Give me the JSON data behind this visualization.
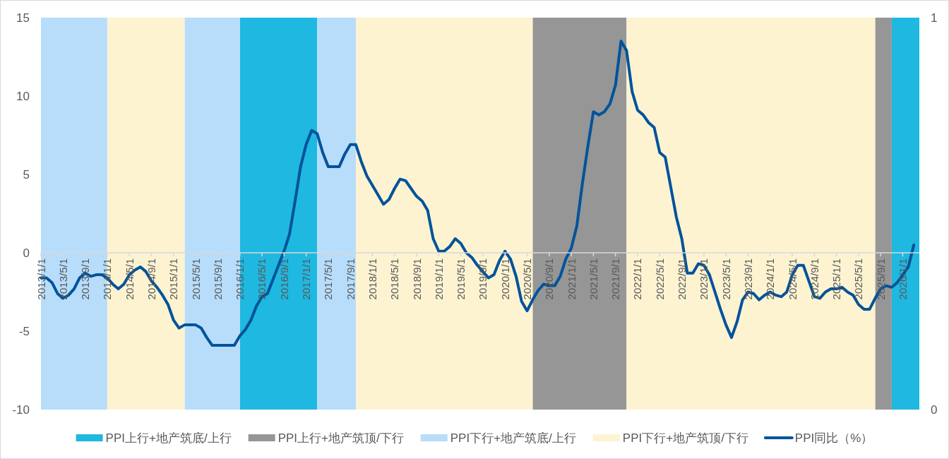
{
  "chart_data": {
    "type": "line",
    "x": [
      "2013-01",
      "2013-02",
      "2013-03",
      "2013-04",
      "2013-05",
      "2013-06",
      "2013-07",
      "2013-08",
      "2013-09",
      "2013-10",
      "2013-11",
      "2013-12",
      "2014-01",
      "2014-02",
      "2014-03",
      "2014-04",
      "2014-05",
      "2014-06",
      "2014-07",
      "2014-08",
      "2014-09",
      "2014-10",
      "2014-11",
      "2014-12",
      "2015-01",
      "2015-02",
      "2015-03",
      "2015-04",
      "2015-05",
      "2015-06",
      "2015-07",
      "2015-08",
      "2015-09",
      "2015-10",
      "2015-11",
      "2015-12",
      "2016-01",
      "2016-02",
      "2016-03",
      "2016-04",
      "2016-05",
      "2016-06",
      "2016-07",
      "2016-08",
      "2016-09",
      "2016-10",
      "2016-11",
      "2016-12",
      "2017-01",
      "2017-02",
      "2017-03",
      "2017-04",
      "2017-05",
      "2017-06",
      "2017-07",
      "2017-08",
      "2017-09",
      "2017-10",
      "2017-11",
      "2017-12",
      "2018-01",
      "2018-02",
      "2018-03",
      "2018-04",
      "2018-05",
      "2018-06",
      "2018-07",
      "2018-08",
      "2018-09",
      "2018-10",
      "2018-11",
      "2018-12",
      "2019-01",
      "2019-02",
      "2019-03",
      "2019-04",
      "2019-05",
      "2019-06",
      "2019-07",
      "2019-08",
      "2019-09",
      "2019-10",
      "2019-11",
      "2019-12",
      "2020-01",
      "2020-02",
      "2020-03",
      "2020-04",
      "2020-05",
      "2020-06",
      "2020-07",
      "2020-08",
      "2020-09",
      "2020-10",
      "2020-11",
      "2020-12",
      "2021-01",
      "2021-02",
      "2021-03",
      "2021-04",
      "2021-05",
      "2021-06",
      "2021-07",
      "2021-08",
      "2021-09",
      "2021-10",
      "2021-11",
      "2021-12",
      "2022-01",
      "2022-02",
      "2022-03",
      "2022-04",
      "2022-05",
      "2022-06",
      "2022-07",
      "2022-08",
      "2022-09",
      "2022-10",
      "2022-11",
      "2022-12",
      "2023-01",
      "2023-02",
      "2023-03",
      "2023-04",
      "2023-05",
      "2023-06",
      "2023-07",
      "2023-08",
      "2023-09",
      "2023-10",
      "2023-11",
      "2023-12",
      "2024-01",
      "2024-02",
      "2024-03",
      "2024-04",
      "2024-05",
      "2024-06",
      "2024-07",
      "2024-08",
      "2024-09",
      "2024-10",
      "2024-11",
      "2024-12",
      "2025-01",
      "2025-02",
      "2025-03",
      "2025-04",
      "2025-05",
      "2025-06",
      "2025-07",
      "2025-08",
      "2025-09",
      "2025-10",
      "2025-11",
      "2025-12",
      "2026-01",
      "2026-02",
      "2026-03"
    ],
    "xlim": [
      "2013-01",
      "2026-04"
    ],
    "xticks": [
      {
        "value": "2013-01",
        "label": "2013/1/1"
      },
      {
        "value": "2013-05",
        "label": "2013/5/1"
      },
      {
        "value": "2013-09",
        "label": "2013/9/1"
      },
      {
        "value": "2014-01",
        "label": "2014/1/1"
      },
      {
        "value": "2014-05",
        "label": "2014/5/1"
      },
      {
        "value": "2014-09",
        "label": "2014/9/1"
      },
      {
        "value": "2015-01",
        "label": "2015/1/1"
      },
      {
        "value": "2015-05",
        "label": "2015/5/1"
      },
      {
        "value": "2015-09",
        "label": "2015/9/1"
      },
      {
        "value": "2016-01",
        "label": "2016/1/1"
      },
      {
        "value": "2016-05",
        "label": "2016/5/1"
      },
      {
        "value": "2016-09",
        "label": "2016/9/1"
      },
      {
        "value": "2017-01",
        "label": "2017/1/1"
      },
      {
        "value": "2017-05",
        "label": "2017/5/1"
      },
      {
        "value": "2017-09",
        "label": "2017/9/1"
      },
      {
        "value": "2018-01",
        "label": "2018/1/1"
      },
      {
        "value": "2018-05",
        "label": "2018/5/1"
      },
      {
        "value": "2018-09",
        "label": "2018/9/1"
      },
      {
        "value": "2019-01",
        "label": "2019/1/1"
      },
      {
        "value": "2019-05",
        "label": "2019/5/1"
      },
      {
        "value": "2019-09",
        "label": "2019/9/1"
      },
      {
        "value": "2020-01",
        "label": "2020/1/1"
      },
      {
        "value": "2020-05",
        "label": "2020/5/1"
      },
      {
        "value": "2020-09",
        "label": "2020/9/1"
      },
      {
        "value": "2021-01",
        "label": "2021/1/1"
      },
      {
        "value": "2021-05",
        "label": "2021/5/1"
      },
      {
        "value": "2021-09",
        "label": "2021/9/1"
      },
      {
        "value": "2022-01",
        "label": "2022/1/1"
      },
      {
        "value": "2022-05",
        "label": "2022/5/1"
      },
      {
        "value": "2022-09",
        "label": "2022/9/1"
      },
      {
        "value": "2023-01",
        "label": "2023/1/1"
      },
      {
        "value": "2023-05",
        "label": "2023/5/1"
      },
      {
        "value": "2023-09",
        "label": "2023/9/1"
      },
      {
        "value": "2024-01",
        "label": "2024/1/1"
      },
      {
        "value": "2024-05",
        "label": "2024/5/1"
      },
      {
        "value": "2024-09",
        "label": "2024/9/1"
      },
      {
        "value": "2025-01",
        "label": "2025/1/1"
      },
      {
        "value": "2025-05",
        "label": "2025/5/1"
      },
      {
        "value": "2025-09",
        "label": "2025/9/1"
      },
      {
        "value": "2026-01",
        "label": "2026/1/1"
      }
    ],
    "ylim": [
      -10,
      15
    ],
    "yticks": [
      -10,
      -5,
      0,
      5,
      10,
      15
    ],
    "y2lim": [
      0,
      1
    ],
    "y2ticks": [
      0,
      1
    ],
    "legend": "bottom",
    "marker": "none",
    "line_style": "solid",
    "bands": [
      {
        "axis": "x",
        "from": "2016-01",
        "to": "2017-03",
        "color": "#1fb8e0",
        "label": "PPI上行+地产筑底/上行"
      },
      {
        "axis": "x",
        "from": "2025-11",
        "to": "2026-04",
        "color": "#1fb8e0"
      },
      {
        "axis": "x",
        "from": "2020-06",
        "to": "2021-11",
        "color": "#969696",
        "label": "PPI上行+地产筑顶/下行"
      },
      {
        "axis": "x",
        "from": "2025-08",
        "to": "2025-11",
        "color": "#969696"
      },
      {
        "axis": "x",
        "from": "2013-01",
        "to": "2014-01",
        "color": "#b7ddfb",
        "label": "PPI下行+地产筑底/上行"
      },
      {
        "axis": "x",
        "from": "2015-03",
        "to": "2016-01",
        "color": "#b7ddfb"
      },
      {
        "axis": "x",
        "from": "2017-03",
        "to": "2017-10",
        "color": "#b7ddfb"
      },
      {
        "axis": "x",
        "from": "2014-01",
        "to": "2015-03",
        "color": "#fdf3d1",
        "label": "PPI下行+地产筑顶/下行"
      },
      {
        "axis": "x",
        "from": "2017-10",
        "to": "2020-06",
        "color": "#fdf3d1"
      },
      {
        "axis": "x",
        "from": "2021-11",
        "to": "2025-08",
        "color": "#fdf3d1"
      }
    ],
    "series": [
      {
        "name": "PPI同比（%）",
        "color": "#00539b",
        "values": [
          -1.6,
          -1.6,
          -1.9,
          -2.6,
          -2.9,
          -2.7,
          -2.3,
          -1.6,
          -1.3,
          -1.5,
          -1.4,
          -1.4,
          -1.6,
          -2.0,
          -2.3,
          -2.0,
          -1.4,
          -1.1,
          -0.9,
          -1.2,
          -1.8,
          -2.2,
          -2.7,
          -3.3,
          -4.3,
          -4.8,
          -4.6,
          -4.6,
          -4.6,
          -4.8,
          -5.4,
          -5.9,
          -5.9,
          -5.9,
          -5.9,
          -5.9,
          -5.3,
          -4.9,
          -4.3,
          -3.4,
          -2.8,
          -2.6,
          -1.7,
          -0.8,
          0.1,
          1.2,
          3.3,
          5.5,
          6.9,
          7.8,
          7.6,
          6.4,
          5.5,
          5.5,
          5.5,
          6.3,
          6.9,
          6.9,
          5.8,
          4.9,
          4.3,
          3.7,
          3.1,
          3.4,
          4.1,
          4.7,
          4.6,
          4.1,
          3.6,
          3.3,
          2.7,
          0.9,
          0.1,
          0.1,
          0.4,
          0.9,
          0.6,
          0.0,
          -0.3,
          -0.8,
          -1.2,
          -1.6,
          -1.4,
          -0.5,
          0.1,
          -0.4,
          -1.5,
          -3.1,
          -3.7,
          -3.0,
          -2.4,
          -2.0,
          -2.1,
          -2.1,
          -1.5,
          -0.4,
          0.3,
          1.7,
          4.4,
          6.8,
          9.0,
          8.8,
          9.0,
          9.5,
          10.7,
          13.5,
          12.9,
          10.3,
          9.1,
          8.8,
          8.3,
          8.0,
          6.4,
          6.1,
          4.2,
          2.3,
          0.9,
          -1.3,
          -1.3,
          -0.7,
          -0.8,
          -1.4,
          -2.5,
          -3.6,
          -4.6,
          -5.4,
          -4.4,
          -3.0,
          -2.5,
          -2.6,
          -3.0,
          -2.7,
          -2.5,
          -2.7,
          -2.8,
          -2.5,
          -1.4,
          -0.8,
          -0.8,
          -1.8,
          -2.8,
          -2.9,
          -2.5,
          -2.3,
          -2.3,
          -2.2,
          -2.5,
          -2.7,
          -3.3,
          -3.6,
          -3.6,
          -2.9,
          -2.3,
          -2.1,
          -2.2,
          -1.9,
          -1.4,
          -0.9,
          0.5
        ]
      }
    ]
  }
}
